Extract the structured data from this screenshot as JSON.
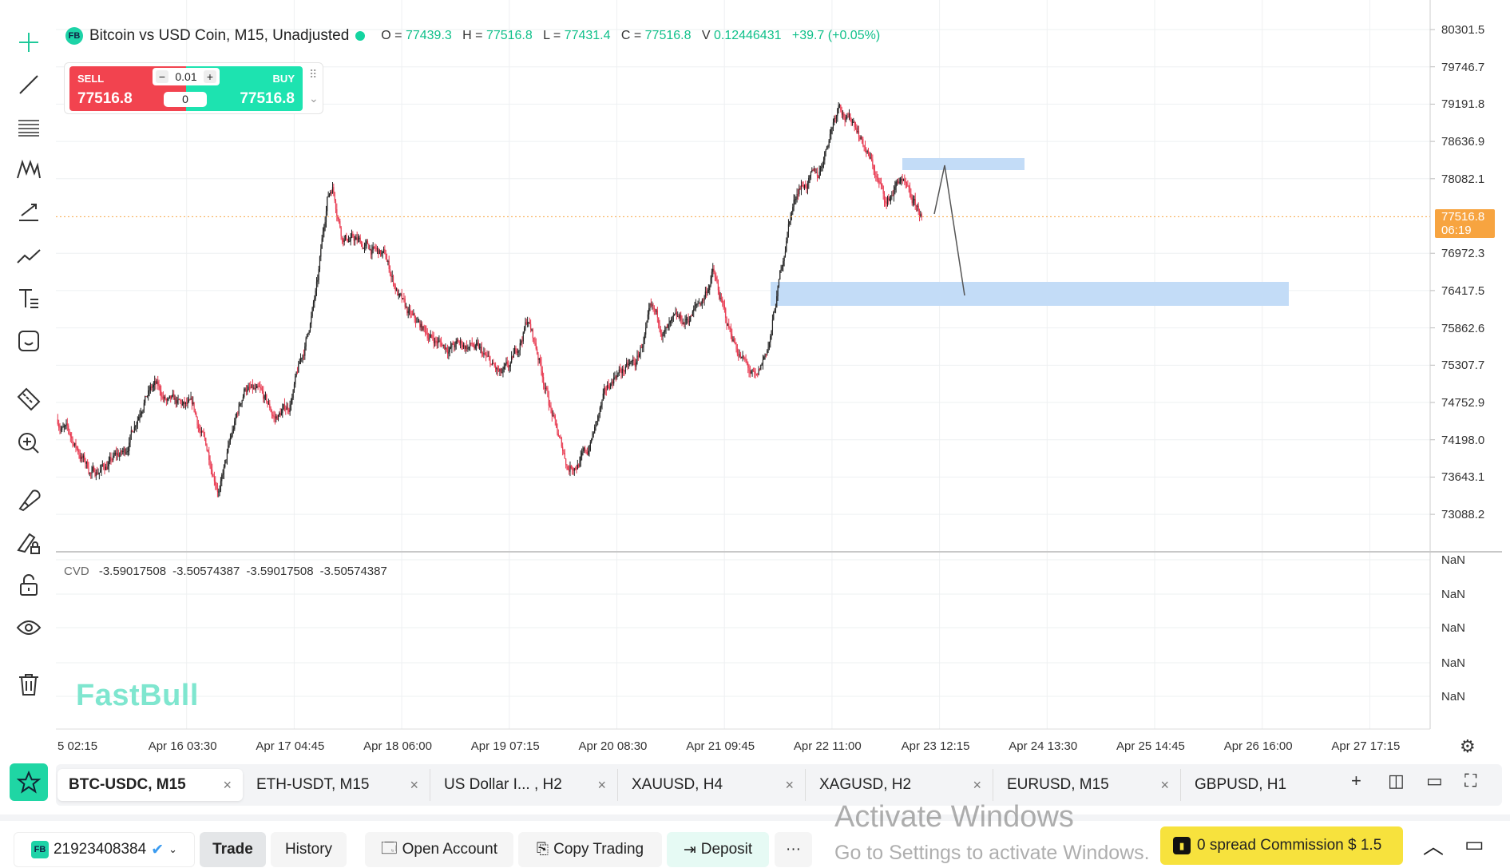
{
  "toolbar": {
    "tools": [
      "crosshair",
      "trend-line",
      "horizontal-lines",
      "pattern",
      "fib",
      "path",
      "text",
      "emoji",
      "ruler",
      "zoom-in",
      "magnet",
      "draw-lock",
      "lock",
      "eye",
      "trash"
    ]
  },
  "header": {
    "badge": "FB",
    "title": "Bitcoin vs USD Coin, M15, Unadjusted",
    "o_label": "O =",
    "o": "77439.3",
    "h_label": "H =",
    "h": "77516.8",
    "l_label": "L =",
    "l": "77431.4",
    "c_label": "C =",
    "c": "77516.8",
    "v_label": "V",
    "v": "0.12446431",
    "change": "+39.7 (+0.05%)"
  },
  "trade_widget": {
    "sell_label": "SELL",
    "sell_price": "77516.8",
    "buy_label": "BUY",
    "buy_price": "77516.8",
    "lot": "0.01",
    "spread": "0",
    "minus": "−",
    "plus": "+"
  },
  "price_axis": [
    "80301.5",
    "79746.7",
    "79191.8",
    "78636.9",
    "78082.1",
    "76972.3",
    "76417.5",
    "75862.6",
    "75307.7",
    "74752.9",
    "74198.0",
    "73643.1",
    "73088.2"
  ],
  "current_price": {
    "price": "77516.8",
    "countdown": "06:19",
    "color": "#f7a440"
  },
  "cvd": {
    "label": "CVD",
    "values": [
      "-3.59017508",
      "-3.50574387",
      "-3.59017508",
      "-3.50574387"
    ],
    "axis": [
      "NaN",
      "NaN",
      "NaN",
      "NaN",
      "NaN"
    ]
  },
  "time_axis": [
    "5 02:15",
    "Apr 16 03:30",
    "Apr 17 04:45",
    "Apr 18 06:00",
    "Apr 19 07:15",
    "Apr 20 08:30",
    "Apr 21 09:45",
    "Apr 22 11:00",
    "Apr 23 12:15",
    "Apr 24 13:30",
    "Apr 25 14:45",
    "Apr 26 16:00",
    "Apr 27 17:15"
  ],
  "watermark": "FastBull",
  "chart_data": {
    "type": "candlestick",
    "interval_minutes": 15,
    "bars_per_label": 101,
    "keypoints": [
      [
        -20,
        74500
      ],
      [
        -11,
        74300
      ],
      [
        12,
        73700
      ],
      [
        43,
        74000
      ],
      [
        61,
        74900
      ],
      [
        71,
        75000
      ],
      [
        84,
        74700
      ],
      [
        107,
        74600
      ],
      [
        132,
        73500
      ],
      [
        143,
        74200
      ],
      [
        156,
        75000
      ],
      [
        170,
        74800
      ],
      [
        184,
        74500
      ],
      [
        197,
        74700
      ],
      [
        211,
        75500
      ],
      [
        224,
        76500
      ],
      [
        233,
        77800
      ],
      [
        238,
        78000
      ],
      [
        247,
        77300
      ],
      [
        265,
        77100
      ],
      [
        287,
        76900
      ],
      [
        306,
        76100
      ],
      [
        315,
        75900
      ],
      [
        342,
        75600
      ],
      [
        369,
        75600
      ],
      [
        396,
        75100
      ],
      [
        405,
        75200
      ],
      [
        421,
        76000
      ],
      [
        432,
        75400
      ],
      [
        450,
        74200
      ],
      [
        459,
        73800
      ],
      [
        477,
        74000
      ],
      [
        491,
        74700
      ],
      [
        504,
        75200
      ],
      [
        523,
        75300
      ],
      [
        536,
        76000
      ],
      [
        550,
        75800
      ],
      [
        568,
        75900
      ],
      [
        586,
        76300
      ],
      [
        595,
        76700
      ],
      [
        608,
        75900
      ],
      [
        626,
        75300
      ],
      [
        636,
        75000
      ],
      [
        649,
        75700
      ],
      [
        658,
        76600
      ],
      [
        667,
        77500
      ],
      [
        676,
        78000
      ],
      [
        694,
        78100
      ],
      [
        705,
        78800
      ],
      [
        714,
        79300
      ],
      [
        721,
        79000
      ],
      [
        730,
        78900
      ],
      [
        744,
        78300
      ],
      [
        758,
        77700
      ],
      [
        771,
        78100
      ],
      [
        780,
        77700
      ],
      [
        791,
        77516.8
      ]
    ],
    "ylim": [
      72700,
      80500
    ],
    "up_color": "#222222",
    "down_color": "#e8384f"
  },
  "tabs": [
    {
      "label": "BTC-USDC, M15",
      "active": true
    },
    {
      "label": "ETH-USDT, M15"
    },
    {
      "label": "US Dollar I... , H2"
    },
    {
      "label": "XAUUSD, H4"
    },
    {
      "label": "XAGUSD, H2"
    },
    {
      "label": "EURUSD, M15"
    },
    {
      "label": "GBPUSD, H1"
    }
  ],
  "tab_close": "×",
  "bottom": {
    "badge": "FB",
    "account": "21923408384",
    "trade": "Trade",
    "history": "History",
    "open_account": "Open Account",
    "copy_trading": "Copy Trading",
    "deposit": "Deposit",
    "more": "···",
    "promo": "0 spread Commission $ 1.5"
  },
  "windows": {
    "line1": "Activate Windows",
    "line2": "Go to Settings to activate Windows."
  }
}
